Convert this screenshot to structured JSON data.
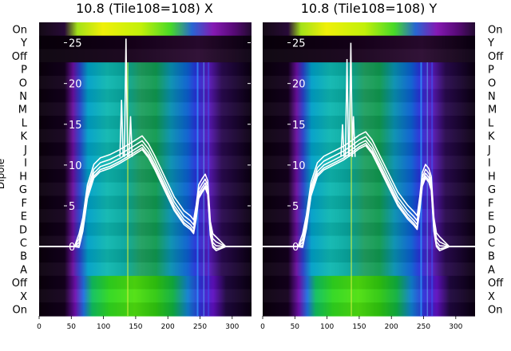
{
  "chart_data": [
    {
      "type": "heatmap",
      "title": "10.8 (Tile108=108) X",
      "xlabel": "",
      "ylabel": "Dipole",
      "xlim": [
        0,
        330
      ],
      "x_ticks": [
        "0",
        "50",
        "100",
        "150",
        "200",
        "250",
        "300"
      ],
      "left_labels": [
        "On",
        "Y",
        "Off",
        "P",
        "O",
        "N",
        "M",
        "L",
        "K",
        "J",
        "I",
        "H",
        "G",
        "F",
        "E",
        "D",
        "C",
        "B",
        "A",
        "Off",
        "X",
        "On"
      ],
      "right_labels": [],
      "overlay_ylim": [
        -8.5,
        27.5
      ],
      "overlay_ticks": [
        "0",
        "5",
        "10",
        "15",
        "20",
        "25"
      ],
      "overlay_series_name": "",
      "overlay_profile": {
        "x": [
          0,
          40,
          55,
          62,
          68,
          75,
          85,
          95,
          110,
          125,
          140,
          150,
          160,
          170,
          180,
          195,
          210,
          225,
          235,
          240,
          244,
          248,
          253,
          258,
          262,
          266,
          270,
          275,
          290,
          310,
          330
        ],
        "y": [
          0,
          0,
          0,
          0.5,
          2.5,
          6.5,
          9.0,
          9.8,
          10.2,
          10.8,
          11.5,
          12.0,
          12.5,
          11.5,
          10.0,
          7.5,
          5.0,
          3.3,
          2.7,
          2.2,
          4.0,
          6.5,
          7.2,
          7.8,
          7.0,
          2.0,
          0.5,
          0.1,
          0.0,
          0.0,
          0.0
        ]
      },
      "overlay_spikes": [
        {
          "x": 128,
          "y": 18
        },
        {
          "x": 135,
          "y": 25.5
        },
        {
          "x": 142,
          "y": 16
        }
      ]
    },
    {
      "type": "heatmap",
      "title": "10.8 (Tile108=108) Y",
      "xlabel": "",
      "ylabel": "",
      "xlim": [
        0,
        330
      ],
      "x_ticks": [
        "0",
        "50",
        "100",
        "150",
        "200",
        "250",
        "300"
      ],
      "left_labels": [],
      "right_labels": [
        "On",
        "Y",
        "Off",
        "P",
        "O",
        "N",
        "M",
        "L",
        "K",
        "J",
        "I",
        "H",
        "G",
        "F",
        "E",
        "D",
        "C",
        "B",
        "A",
        "Off",
        "X",
        "On"
      ],
      "overlay_ylim": [
        -8.5,
        27.5
      ],
      "overlay_ticks": [
        "0",
        "5",
        "10",
        "15",
        "20",
        "25"
      ],
      "overlay_series_name": "",
      "overlay_profile": {
        "x": [
          0,
          40,
          55,
          62,
          68,
          75,
          85,
          95,
          110,
          125,
          140,
          150,
          160,
          170,
          180,
          195,
          210,
          225,
          235,
          240,
          244,
          248,
          253,
          258,
          262,
          266,
          270,
          275,
          290,
          310,
          330
        ],
        "y": [
          0,
          0,
          0,
          0.5,
          2.8,
          6.8,
          9.2,
          10.0,
          10.6,
          11.2,
          12.0,
          12.6,
          13.0,
          12.0,
          10.4,
          8.0,
          5.6,
          4.0,
          3.2,
          2.7,
          5.0,
          8.0,
          9.0,
          8.5,
          7.5,
          2.5,
          0.6,
          0.1,
          0.0,
          0.0,
          0.0
        ]
      },
      "overlay_spikes": [
        {
          "x": 124,
          "y": 15
        },
        {
          "x": 131,
          "y": 23
        },
        {
          "x": 137,
          "y": 25
        },
        {
          "x": 141,
          "y": 16
        }
      ]
    }
  ]
}
